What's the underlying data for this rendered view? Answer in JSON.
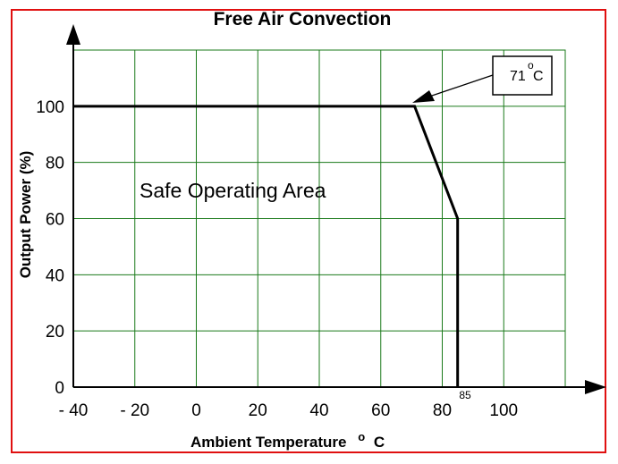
{
  "chart_data": {
    "type": "line",
    "title": "Free Air Convection",
    "xlabel": "Ambient Temperature  o C",
    "xlabel_parts": {
      "prefix": "Ambient Temperature",
      "degree": "o",
      "unit": "C"
    },
    "ylabel": "Output Power (%)",
    "x_ticks": [
      {
        "value": -40,
        "label": "- 40"
      },
      {
        "value": -20,
        "label": "- 20"
      },
      {
        "value": 0,
        "label": "0"
      },
      {
        "value": 20,
        "label": "20"
      },
      {
        "value": 40,
        "label": "40"
      },
      {
        "value": 60,
        "label": "60"
      },
      {
        "value": 80,
        "label": "80"
      },
      {
        "value": 100,
        "label": "100"
      }
    ],
    "y_ticks": [
      {
        "value": 0,
        "label": "0"
      },
      {
        "value": 20,
        "label": "20"
      },
      {
        "value": 40,
        "label": "40"
      },
      {
        "value": 60,
        "label": "60"
      },
      {
        "value": 80,
        "label": "80"
      },
      {
        "value": 100,
        "label": "100"
      }
    ],
    "xlim": [
      -40,
      120
    ],
    "ylim": [
      0,
      120
    ],
    "grid": true,
    "grid_color": "#1a7a1a",
    "frame_color": "#e01010",
    "series": [
      {
        "x": [
          -40,
          71,
          85,
          85
        ],
        "y": [
          100,
          100,
          60,
          0
        ],
        "color": "#000000"
      }
    ],
    "annotations": {
      "region_label": "Safe Operating Area",
      "marker_85_label": "85",
      "callout": {
        "value_text": "71",
        "degree": "o",
        "unit": "C",
        "points_to": {
          "x": 71,
          "y": 100
        }
      }
    }
  }
}
